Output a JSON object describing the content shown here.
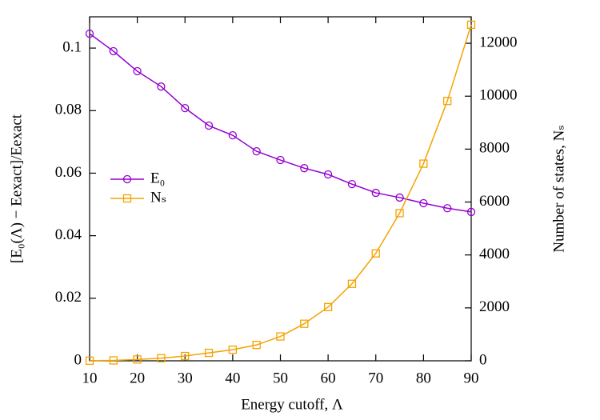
{
  "chart_data": {
    "type": "line",
    "x_label": "Energy cutoff, Λ",
    "y_label": "[E₀(Λ) − Eexact]/Eexact",
    "y2_label": "Number of states, Nₛ",
    "x": [
      10,
      15,
      20,
      25,
      30,
      35,
      40,
      45,
      50,
      55,
      60,
      65,
      70,
      75,
      80,
      85,
      90
    ],
    "series": [
      {
        "name": "E₀",
        "color": "#9400d3",
        "marker": "circle",
        "values": [
          0.1046,
          0.099,
          0.0926,
          0.0877,
          0.0808,
          0.0752,
          0.0721,
          0.067,
          0.0642,
          0.0616,
          0.0596,
          0.0565,
          0.0537,
          0.0522,
          0.0504,
          0.0488,
          0.0476
        ]
      },
      {
        "name": "Nₛ",
        "color": "#f4a300",
        "marker": "square",
        "axis": "y2",
        "values": [
          5,
          15,
          50,
          100,
          180,
          300,
          420,
          600,
          920,
          1400,
          2030,
          2910,
          4060,
          5580,
          7450,
          9820,
          12700
        ]
      }
    ],
    "xlim": [
      10,
      90
    ],
    "xticks": [
      10,
      20,
      30,
      40,
      50,
      60,
      70,
      80,
      90
    ],
    "ylim": [
      0,
      0.11
    ],
    "yticks": [
      0,
      0.02,
      0.04,
      0.06,
      0.08,
      0.1
    ],
    "y2lim": [
      0,
      13000
    ],
    "y2ticks": [
      0,
      2000,
      4000,
      6000,
      8000,
      10000,
      12000
    ],
    "legend": "left"
  }
}
